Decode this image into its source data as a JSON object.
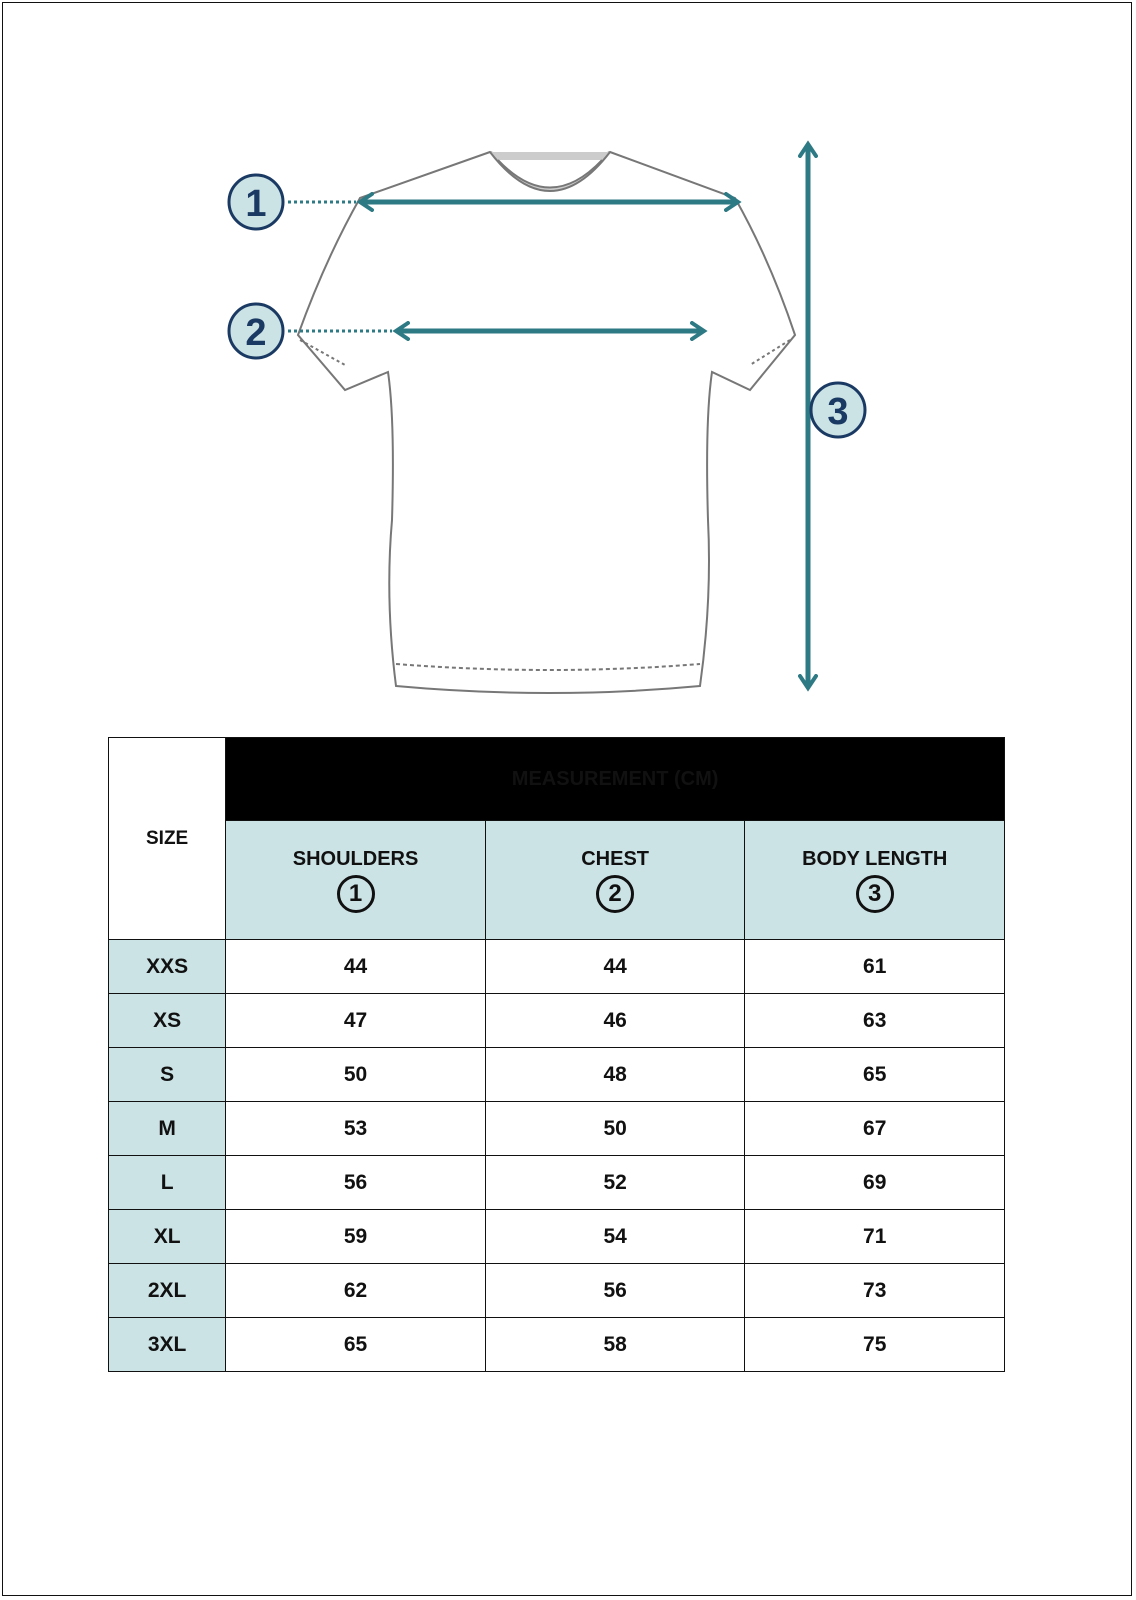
{
  "diagram": {
    "markers": [
      "1",
      "2",
      "3"
    ],
    "accent_color": "#2d7a84",
    "marker_fill": "#cce3e6",
    "marker_text_color": "#1b3a63"
  },
  "table": {
    "size_header": "SIZE",
    "group_header": "MEASUREMENT (CM)",
    "columns": [
      {
        "label": "SHOULDERS",
        "marker": "1"
      },
      {
        "label": "CHEST",
        "marker": "2"
      },
      {
        "label": "BODY LENGTH",
        "marker": "3"
      }
    ],
    "rows": [
      {
        "size": "XXS",
        "values": [
          "44",
          "44",
          "61"
        ]
      },
      {
        "size": "XS",
        "values": [
          "47",
          "46",
          "63"
        ]
      },
      {
        "size": "S",
        "values": [
          "50",
          "48",
          "65"
        ]
      },
      {
        "size": "M",
        "values": [
          "53",
          "50",
          "67"
        ]
      },
      {
        "size": "L",
        "values": [
          "56",
          "52",
          "69"
        ]
      },
      {
        "size": "XL",
        "values": [
          "59",
          "54",
          "71"
        ]
      },
      {
        "size": "2XL",
        "values": [
          "62",
          "56",
          "73"
        ]
      },
      {
        "size": "3XL",
        "values": [
          "65",
          "58",
          "75"
        ]
      }
    ],
    "header_fill": "#cce3e6"
  }
}
